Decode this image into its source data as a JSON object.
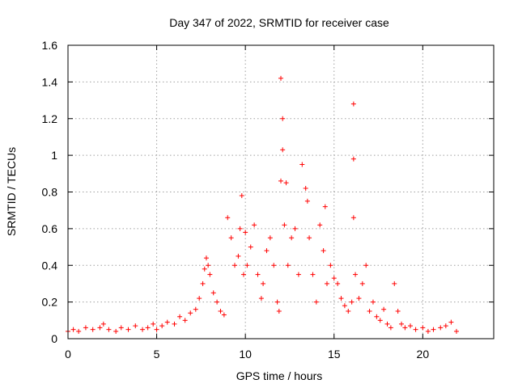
{
  "chart_data": {
    "type": "scatter",
    "title": "Day 347 of 2022, SRMTID for receiver case",
    "xlabel": "GPS time / hours",
    "ylabel": "SRMTID / TECUs",
    "xlim": [
      0,
      24
    ],
    "ylim": [
      0,
      1.6
    ],
    "xticks": [
      0,
      5,
      10,
      15,
      20
    ],
    "xtick_labels": [
      "0",
      "5",
      "10",
      "15",
      "20"
    ],
    "yticks": [
      0,
      0.2,
      0.4,
      0.6,
      0.8,
      1,
      1.2,
      1.4,
      1.6
    ],
    "ytick_labels": [
      "0",
      "0.2",
      "0.4",
      "0.6",
      "0.8",
      "1",
      "1.2",
      "1.4",
      "1.6"
    ],
    "grid": true,
    "marker": "+",
    "series": [
      {
        "name": "SRMTID",
        "color": "#ff0000",
        "x": [
          0.0,
          0.3,
          0.6,
          1.0,
          1.4,
          1.8,
          2.0,
          2.3,
          2.7,
          3.0,
          3.4,
          3.8,
          4.2,
          4.5,
          4.8,
          5.0,
          5.3,
          5.6,
          6.0,
          6.3,
          6.6,
          6.9,
          7.2,
          7.4,
          7.6,
          7.7,
          7.8,
          7.9,
          8.0,
          8.2,
          8.4,
          8.6,
          8.8,
          9.0,
          9.2,
          9.4,
          9.6,
          9.7,
          9.8,
          9.9,
          10.0,
          10.1,
          10.3,
          10.5,
          10.7,
          10.9,
          11.0,
          11.2,
          11.4,
          11.6,
          11.8,
          11.9,
          12.0,
          12.0,
          12.1,
          12.1,
          12.2,
          12.3,
          12.4,
          12.6,
          12.8,
          13.0,
          13.2,
          13.4,
          13.5,
          13.6,
          13.8,
          14.0,
          14.2,
          14.4,
          14.5,
          14.6,
          14.8,
          15.0,
          15.2,
          15.4,
          15.6,
          15.8,
          16.0,
          16.1,
          16.1,
          16.1,
          16.2,
          16.4,
          16.6,
          16.8,
          17.0,
          17.2,
          17.4,
          17.6,
          17.8,
          18.0,
          18.2,
          18.4,
          18.6,
          18.8,
          19.0,
          19.3,
          19.6,
          20.0,
          20.3,
          20.6,
          21.0,
          21.3,
          21.6,
          21.9
        ],
        "y": [
          0.04,
          0.05,
          0.04,
          0.06,
          0.05,
          0.06,
          0.08,
          0.05,
          0.04,
          0.06,
          0.05,
          0.07,
          0.05,
          0.06,
          0.08,
          0.05,
          0.07,
          0.09,
          0.08,
          0.12,
          0.1,
          0.14,
          0.16,
          0.22,
          0.3,
          0.38,
          0.44,
          0.4,
          0.35,
          0.25,
          0.2,
          0.15,
          0.13,
          0.66,
          0.55,
          0.4,
          0.45,
          0.6,
          0.78,
          0.35,
          0.58,
          0.4,
          0.5,
          0.62,
          0.35,
          0.22,
          0.3,
          0.48,
          0.55,
          0.4,
          0.2,
          0.15,
          0.86,
          1.42,
          1.2,
          1.03,
          0.62,
          0.85,
          0.4,
          0.55,
          0.6,
          0.35,
          0.95,
          0.82,
          0.75,
          0.55,
          0.35,
          0.2,
          0.62,
          0.48,
          0.72,
          0.3,
          0.4,
          0.33,
          0.3,
          0.22,
          0.18,
          0.15,
          0.2,
          1.28,
          0.98,
          0.66,
          0.35,
          0.22,
          0.3,
          0.4,
          0.15,
          0.2,
          0.12,
          0.1,
          0.16,
          0.08,
          0.06,
          0.3,
          0.15,
          0.08,
          0.06,
          0.07,
          0.05,
          0.06,
          0.04,
          0.05,
          0.06,
          0.07,
          0.09,
          0.04
        ]
      }
    ]
  }
}
